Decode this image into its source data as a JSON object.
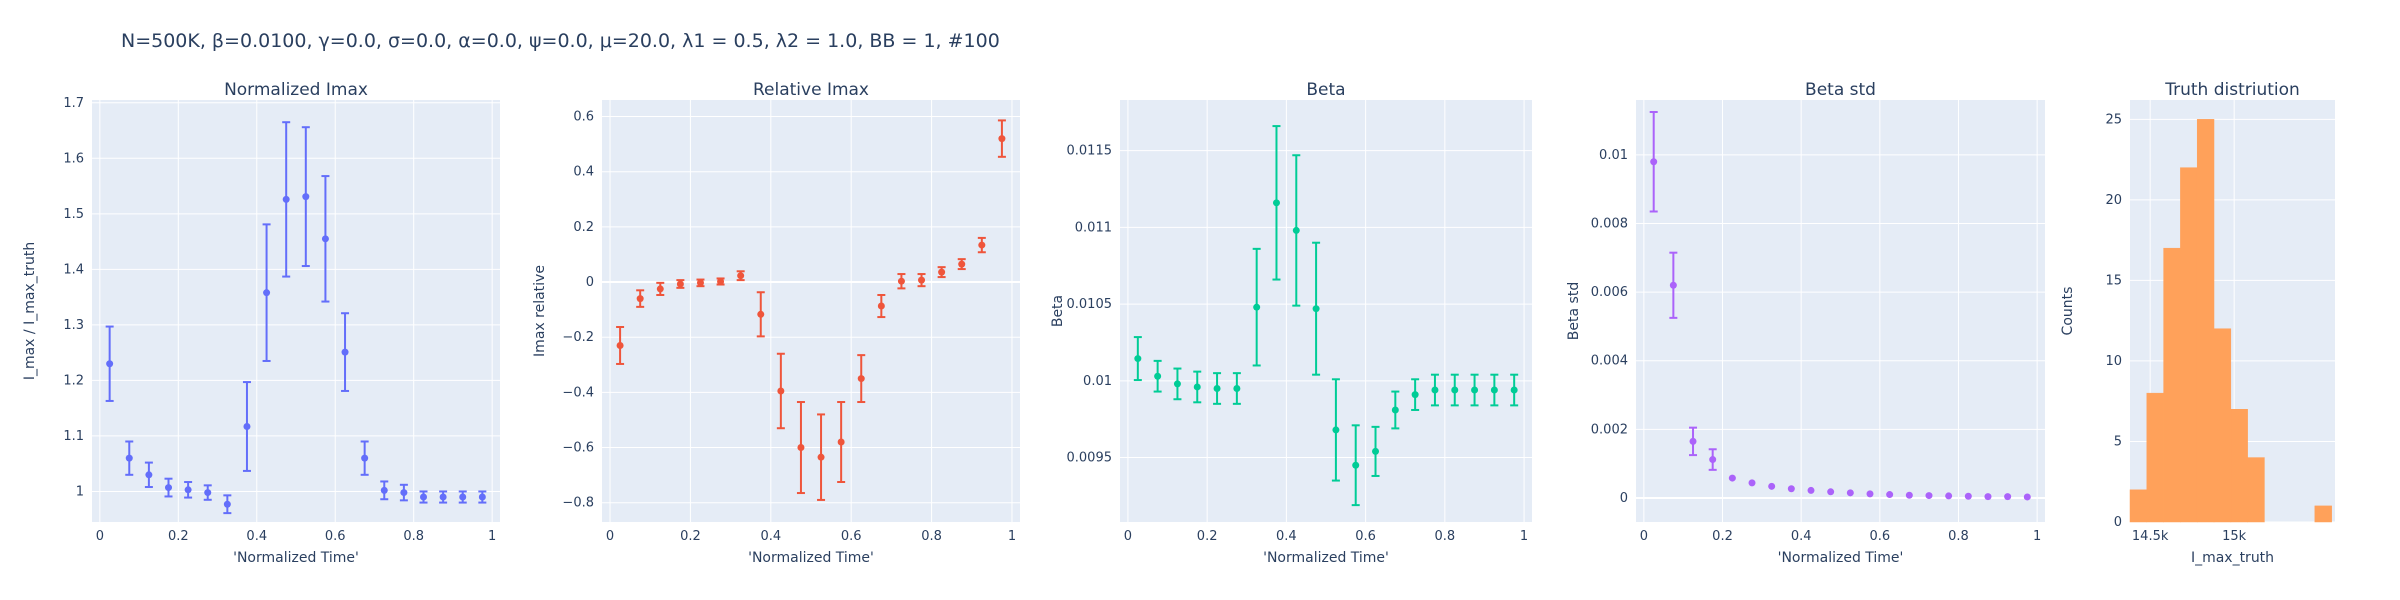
{
  "figure_title": "N=500K, β=0.0100, γ=0.0, σ=0.0,  α=0.0, ψ=0.0, μ=20.0, λ1 = 0.5, λ2 = 1.0, BB = 1, #100",
  "colors": {
    "plot_bg": "#e5ecf6",
    "grid": "#ffffff",
    "text": "#2a3f5f"
  },
  "chart_data": [
    {
      "type": "scatter",
      "title": "Normalized Imax",
      "xlabel": "'Normalized Time'",
      "ylabel": "I_max / I_max_truth",
      "color": "#636efa",
      "xlim": [
        -0.02,
        1.02
      ],
      "ylim": [
        0.945,
        1.705
      ],
      "xticks": [
        0,
        0.2,
        0.4,
        0.6,
        0.8,
        1
      ],
      "xtick_labels": [
        "0",
        "0.2",
        "0.4",
        "0.6",
        "0.8",
        "1"
      ],
      "yticks": [
        1,
        1.1,
        1.2,
        1.3,
        1.4,
        1.5,
        1.6,
        1.7
      ],
      "ytick_labels": [
        "1",
        "1.1",
        "1.2",
        "1.3",
        "1.4",
        "1.5",
        "1.6",
        "1.7"
      ],
      "points": [
        {
          "x": 0.025,
          "y": 1.23,
          "err": 0.067
        },
        {
          "x": 0.075,
          "y": 1.06,
          "err": 0.03
        },
        {
          "x": 0.125,
          "y": 1.03,
          "err": 0.022
        },
        {
          "x": 0.175,
          "y": 1.007,
          "err": 0.016
        },
        {
          "x": 0.225,
          "y": 1.003,
          "err": 0.014
        },
        {
          "x": 0.275,
          "y": 0.998,
          "err": 0.013
        },
        {
          "x": 0.325,
          "y": 0.977,
          "err": 0.016
        },
        {
          "x": 0.375,
          "y": 1.117,
          "err": 0.08
        },
        {
          "x": 0.425,
          "y": 1.358,
          "err": 0.123
        },
        {
          "x": 0.475,
          "y": 1.526,
          "err": 0.139
        },
        {
          "x": 0.525,
          "y": 1.531,
          "err": 0.125
        },
        {
          "x": 0.575,
          "y": 1.455,
          "err": 0.113
        },
        {
          "x": 0.625,
          "y": 1.251,
          "err": 0.07
        },
        {
          "x": 0.675,
          "y": 1.06,
          "err": 0.03
        },
        {
          "x": 0.725,
          "y": 1.002,
          "err": 0.016
        },
        {
          "x": 0.775,
          "y": 0.998,
          "err": 0.014
        },
        {
          "x": 0.825,
          "y": 0.99,
          "err": 0.01
        },
        {
          "x": 0.875,
          "y": 0.99,
          "err": 0.01
        },
        {
          "x": 0.925,
          "y": 0.99,
          "err": 0.01
        },
        {
          "x": 0.975,
          "y": 0.99,
          "err": 0.01
        }
      ]
    },
    {
      "type": "scatter",
      "title": "Relative Imax",
      "xlabel": "'Normalized Time'",
      "ylabel": "Imax relative",
      "color": "#ef553b",
      "xlim": [
        -0.02,
        1.02
      ],
      "ylim": [
        -0.87,
        0.66
      ],
      "xticks": [
        0,
        0.2,
        0.4,
        0.6,
        0.8,
        1
      ],
      "xtick_labels": [
        "0",
        "0.2",
        "0.4",
        "0.6",
        "0.8",
        "1"
      ],
      "yticks": [
        -0.8,
        -0.6,
        -0.4,
        -0.2,
        0,
        0.2,
        0.4,
        0.6
      ],
      "ytick_labels": [
        "−0.8",
        "−0.6",
        "−0.4",
        "−0.2",
        "0",
        "0.2",
        "0.4",
        "0.6"
      ],
      "zeroline": true,
      "points": [
        {
          "x": 0.025,
          "y": -0.23,
          "err": 0.067
        },
        {
          "x": 0.075,
          "y": -0.06,
          "err": 0.03
        },
        {
          "x": 0.125,
          "y": -0.025,
          "err": 0.022
        },
        {
          "x": 0.175,
          "y": -0.007,
          "err": 0.014
        },
        {
          "x": 0.225,
          "y": -0.003,
          "err": 0.012
        },
        {
          "x": 0.275,
          "y": 0.002,
          "err": 0.011
        },
        {
          "x": 0.325,
          "y": 0.023,
          "err": 0.016
        },
        {
          "x": 0.375,
          "y": -0.117,
          "err": 0.08
        },
        {
          "x": 0.425,
          "y": -0.395,
          "err": 0.135
        },
        {
          "x": 0.475,
          "y": -0.6,
          "err": 0.165
        },
        {
          "x": 0.525,
          "y": -0.635,
          "err": 0.155
        },
        {
          "x": 0.575,
          "y": -0.58,
          "err": 0.145
        },
        {
          "x": 0.625,
          "y": -0.35,
          "err": 0.085
        },
        {
          "x": 0.675,
          "y": -0.087,
          "err": 0.04
        },
        {
          "x": 0.725,
          "y": 0.003,
          "err": 0.026
        },
        {
          "x": 0.775,
          "y": 0.007,
          "err": 0.022
        },
        {
          "x": 0.825,
          "y": 0.036,
          "err": 0.018
        },
        {
          "x": 0.875,
          "y": 0.065,
          "err": 0.018
        },
        {
          "x": 0.925,
          "y": 0.134,
          "err": 0.026
        },
        {
          "x": 0.975,
          "y": 0.52,
          "err": 0.066
        }
      ]
    },
    {
      "type": "scatter",
      "title": "Beta",
      "xlabel": "'Normalized Time'",
      "ylabel": "Beta",
      "color": "#00cc96",
      "xlim": [
        -0.02,
        1.02
      ],
      "ylim": [
        0.00908,
        0.01183
      ],
      "xticks": [
        0,
        0.2,
        0.4,
        0.6,
        0.8,
        1
      ],
      "xtick_labels": [
        "0",
        "0.2",
        "0.4",
        "0.6",
        "0.8",
        "1"
      ],
      "yticks": [
        0.0095,
        0.01,
        0.0105,
        0.011,
        0.0115
      ],
      "ytick_labels": [
        "0.0095",
        "0.01",
        "0.0105",
        "0.011",
        "0.0115"
      ],
      "points": [
        {
          "x": 0.025,
          "y": 0.010145,
          "err": 0.00014
        },
        {
          "x": 0.075,
          "y": 0.01003,
          "err": 0.0001
        },
        {
          "x": 0.125,
          "y": 0.00998,
          "err": 0.0001
        },
        {
          "x": 0.175,
          "y": 0.00996,
          "err": 0.0001
        },
        {
          "x": 0.225,
          "y": 0.00995,
          "err": 0.0001
        },
        {
          "x": 0.275,
          "y": 0.00995,
          "err": 0.0001
        },
        {
          "x": 0.325,
          "y": 0.01048,
          "err": 0.00038
        },
        {
          "x": 0.375,
          "y": 0.01116,
          "err": 0.0005
        },
        {
          "x": 0.425,
          "y": 0.01098,
          "err": 0.00049
        },
        {
          "x": 0.475,
          "y": 0.01047,
          "err": 0.00043
        },
        {
          "x": 0.525,
          "y": 0.00968,
          "err": 0.00033
        },
        {
          "x": 0.575,
          "y": 0.00945,
          "err": 0.00026
        },
        {
          "x": 0.625,
          "y": 0.00954,
          "err": 0.00016
        },
        {
          "x": 0.675,
          "y": 0.00981,
          "err": 0.00012
        },
        {
          "x": 0.725,
          "y": 0.00991,
          "err": 0.0001
        },
        {
          "x": 0.775,
          "y": 0.00994,
          "err": 0.0001
        },
        {
          "x": 0.825,
          "y": 0.00994,
          "err": 0.0001
        },
        {
          "x": 0.875,
          "y": 0.00994,
          "err": 0.0001
        },
        {
          "x": 0.925,
          "y": 0.00994,
          "err": 0.0001
        },
        {
          "x": 0.975,
          "y": 0.00994,
          "err": 0.0001
        }
      ]
    },
    {
      "type": "scatter",
      "title": "Beta std",
      "xlabel": "'Normalized Time'",
      "ylabel": "Beta std",
      "color": "#ab63fa",
      "xlim": [
        -0.02,
        1.02
      ],
      "ylim": [
        -0.0007,
        0.0116
      ],
      "xticks": [
        0,
        0.2,
        0.4,
        0.6,
        0.8,
        1
      ],
      "xtick_labels": [
        "0",
        "0.2",
        "0.4",
        "0.6",
        "0.8",
        "1"
      ],
      "yticks": [
        0,
        0.002,
        0.004,
        0.006,
        0.008,
        0.01
      ],
      "ytick_labels": [
        "0",
        "0.002",
        "0.004",
        "0.006",
        "0.008",
        "0.01"
      ],
      "zeroline": true,
      "points": [
        {
          "x": 0.025,
          "y": 0.0098,
          "err": 0.00145
        },
        {
          "x": 0.075,
          "y": 0.0062,
          "err": 0.00095
        },
        {
          "x": 0.125,
          "y": 0.00165,
          "err": 0.0004
        },
        {
          "x": 0.175,
          "y": 0.00112,
          "err": 0.0003
        },
        {
          "x": 0.225,
          "y": 0.00058,
          "err": 0.0
        },
        {
          "x": 0.275,
          "y": 0.00044,
          "err": 0.0
        },
        {
          "x": 0.325,
          "y": 0.00034,
          "err": 0.0
        },
        {
          "x": 0.375,
          "y": 0.00027,
          "err": 0.0
        },
        {
          "x": 0.425,
          "y": 0.00022,
          "err": 0.0
        },
        {
          "x": 0.475,
          "y": 0.00018,
          "err": 0.0
        },
        {
          "x": 0.525,
          "y": 0.00015,
          "err": 0.0
        },
        {
          "x": 0.575,
          "y": 0.00012,
          "err": 0.0
        },
        {
          "x": 0.625,
          "y": 0.0001,
          "err": 0.0
        },
        {
          "x": 0.675,
          "y": 8e-05,
          "err": 0.0
        },
        {
          "x": 0.725,
          "y": 7e-05,
          "err": 0.0
        },
        {
          "x": 0.775,
          "y": 6e-05,
          "err": 0.0
        },
        {
          "x": 0.825,
          "y": 5e-05,
          "err": 0.0
        },
        {
          "x": 0.875,
          "y": 4e-05,
          "err": 0.0
        },
        {
          "x": 0.925,
          "y": 4e-05,
          "err": 0.0
        },
        {
          "x": 0.975,
          "y": 3e-05,
          "err": 0.0
        }
      ]
    },
    {
      "type": "bar",
      "title": "Truth distriution",
      "xlabel": "I_max_truth",
      "ylabel": "Counts",
      "color": "#ffa15a",
      "xlim": [
        14380,
        15600
      ],
      "ylim": [
        0,
        26.2
      ],
      "xticks": [
        14500,
        15000
      ],
      "xtick_labels": [
        "14.5k",
        "15k"
      ],
      "yticks": [
        0,
        5,
        10,
        15,
        20,
        25
      ],
      "ytick_labels": [
        "0",
        "5",
        "10",
        "15",
        "20",
        "25"
      ],
      "bin_width": 100,
      "bins": [
        {
          "start": 14380,
          "count": 2
        },
        {
          "start": 14480,
          "count": 8
        },
        {
          "start": 14580,
          "count": 17
        },
        {
          "start": 14680,
          "count": 22
        },
        {
          "start": 14780,
          "count": 25
        },
        {
          "start": 14880,
          "count": 12
        },
        {
          "start": 14980,
          "count": 7
        },
        {
          "start": 15080,
          "count": 4
        },
        {
          "start": 15180,
          "count": 0
        },
        {
          "start": 15280,
          "count": 0
        },
        {
          "start": 15380,
          "count": 0
        },
        {
          "start": 15480,
          "count": 1
        }
      ]
    }
  ]
}
